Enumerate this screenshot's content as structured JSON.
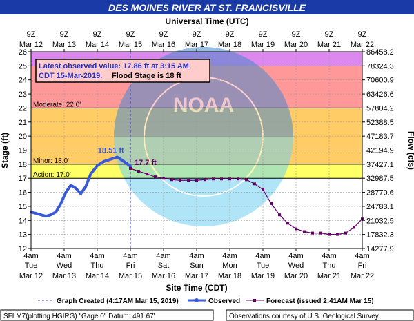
{
  "chart_data": {
    "type": "line",
    "title": "DES MOINES RIVER AT ST. FRANCISVILLE",
    "top_axis_title": "Universal Time (UTC)",
    "bottom_axis_title": "Site Time (CDT)",
    "ylabel_left": "Stage (ft)",
    "ylabel_right": "Flow (cfs)",
    "colors": {
      "title_bg": "#1a3aa8",
      "observed": "#3a5ad8",
      "forecast": "#660066",
      "record": "#dd88ee",
      "major": "#ff9999",
      "moderate": "#ffcc66",
      "minor": "#ffff66"
    },
    "ylim": [
      12,
      26
    ],
    "y_ticks": [
      "12",
      "13",
      "14",
      "15",
      "16",
      "17",
      "18",
      "19",
      "20",
      "21",
      "22",
      "23",
      "24",
      "25",
      "26"
    ],
    "flow_ticks": [
      "14277.9",
      "17832.3",
      "21032.5",
      "24783.1",
      "28770.6",
      "32987.5",
      "37427.1",
      "42194.9",
      "47183.7",
      "52388.5",
      "57804.2",
      "63426.6",
      "70600.9",
      "78324.3",
      "86458.2"
    ],
    "x_day_range": [
      0,
      10
    ],
    "top_ticks": [
      {
        "t": "9Z",
        "b": "Mar 12"
      },
      {
        "t": "9Z",
        "b": "Mar 13"
      },
      {
        "t": "9Z",
        "b": "Mar 14"
      },
      {
        "t": "9Z",
        "b": "Mar 15"
      },
      {
        "t": "9Z",
        "b": "Mar 16"
      },
      {
        "t": "9Z",
        "b": "Mar 17"
      },
      {
        "t": "9Z",
        "b": "Mar 18"
      },
      {
        "t": "9Z",
        "b": "Mar 19"
      },
      {
        "t": "9Z",
        "b": "Mar 20"
      },
      {
        "t": "9Z",
        "b": "Mar 21"
      },
      {
        "t": "9Z",
        "b": "Mar 22"
      }
    ],
    "bottom_ticks": [
      {
        "t": "4am",
        "d": "Tue",
        "m": "Mar 12"
      },
      {
        "t": "4am",
        "d": "Wed",
        "m": "Mar 13"
      },
      {
        "t": "4am",
        "d": "Thu",
        "m": "Mar 14"
      },
      {
        "t": "4am",
        "d": "Fri",
        "m": "Mar 15"
      },
      {
        "t": "4am",
        "d": "Sat",
        "m": "Mar 16"
      },
      {
        "t": "4am",
        "d": "Sun",
        "m": "Mar 17"
      },
      {
        "t": "4am",
        "d": "Mon",
        "m": "Mar 18"
      },
      {
        "t": "4am",
        "d": "Tue",
        "m": "Mar 19"
      },
      {
        "t": "4am",
        "d": "Wed",
        "m": "Mar 20"
      },
      {
        "t": "4am",
        "d": "Thu",
        "m": "Mar 21"
      },
      {
        "t": "4am",
        "d": "Fri",
        "m": "Mar 22"
      }
    ],
    "flood_bands": [
      {
        "name": "record",
        "from": 25,
        "to": 26,
        "color": "#dd88ee"
      },
      {
        "name": "major",
        "from": 22,
        "to": 25,
        "color": "#ff9999"
      },
      {
        "name": "moderate",
        "from": 18,
        "to": 22,
        "color": "#ffcc66"
      },
      {
        "name": "minor",
        "from": 17,
        "to": 18,
        "color": "#ffff66"
      }
    ],
    "thresholds": [
      {
        "label": "Moderate:  22.0'",
        "y": 22
      },
      {
        "label": "Minor:  18.0'",
        "y": 18
      },
      {
        "label": "Action:  17.0'",
        "y": 17
      }
    ],
    "annotation_line1": "Latest observed value: 17.86 ft at 3:15 AM",
    "annotation_line2a": "CDT 15-Mar-2019.",
    "annotation_line2b": "Flood Stage is 18 ft",
    "peak_label": "18.51 ft",
    "latest_label": "17.7 ft",
    "created_day": 3.0,
    "series": [
      {
        "name": "Observed",
        "x": [
          0,
          0.15,
          0.3,
          0.45,
          0.6,
          0.75,
          0.9,
          1.05,
          1.2,
          1.35,
          1.5,
          1.65,
          1.8,
          2.0,
          2.2,
          2.4,
          2.6,
          2.8,
          3.0
        ],
        "values": [
          14.6,
          14.5,
          14.4,
          14.3,
          14.4,
          14.6,
          15.2,
          16.0,
          16.5,
          16.3,
          15.9,
          16.4,
          17.3,
          17.9,
          18.2,
          18.35,
          18.51,
          18.2,
          17.86
        ]
      },
      {
        "name": "Forecast (issued 2:41AM Mar 15)",
        "x": [
          3.0,
          3.25,
          3.5,
          3.75,
          4.0,
          4.25,
          4.5,
          4.75,
          5.0,
          5.25,
          5.5,
          5.75,
          6.0,
          6.25,
          6.5,
          6.75,
          7.0,
          7.25,
          7.5,
          7.75,
          8.0,
          8.25,
          8.5,
          8.75,
          9.0,
          9.25,
          9.5,
          9.75,
          10.0
        ],
        "values": [
          17.7,
          17.5,
          17.3,
          17.1,
          17.0,
          16.9,
          16.85,
          16.85,
          16.85,
          16.9,
          16.95,
          16.95,
          16.95,
          16.95,
          16.9,
          16.6,
          16.2,
          15.2,
          14.4,
          13.8,
          13.4,
          13.2,
          13.1,
          13.1,
          13.0,
          13.0,
          13.1,
          13.5,
          14.1
        ]
      }
    ],
    "legend": {
      "created": "Graph Created (4:17AM Mar 15, 2019)",
      "observed": "Observed",
      "forecast": "Forecast (issued 2:41AM Mar 15)"
    },
    "footer_left": "SFLM7(plotting HGIRG) \"Gage 0\" Datum: 491.67'",
    "footer_right": "Observations courtesy of U.S. Geological Survey"
  }
}
